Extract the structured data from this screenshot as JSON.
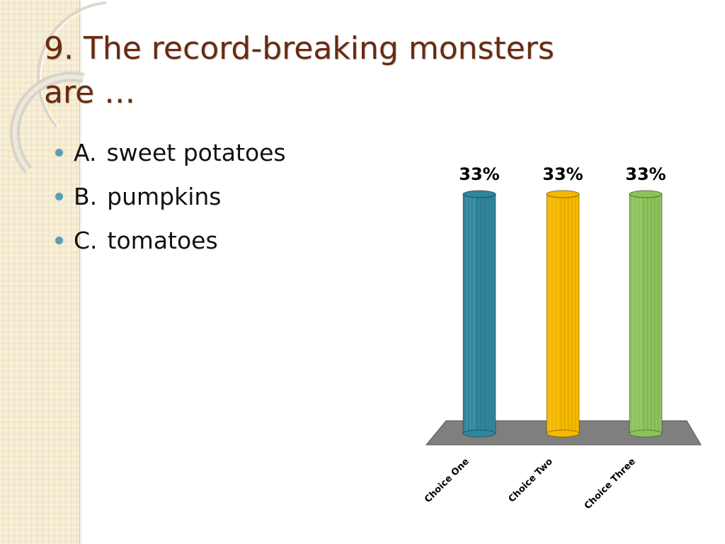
{
  "slide": {
    "title_number": "9.",
    "title_text": "The record-breaking monsters are …"
  },
  "bullets": [
    {
      "letter": "A.",
      "text": "sweet potatoes"
    },
    {
      "letter": "B.",
      "text": "pumpkins"
    },
    {
      "letter": "C.",
      "text": "tomatoes"
    }
  ],
  "theme": {
    "title_color": "#6a2a10",
    "bullet_color": "#5a9eb4",
    "floor_color": "#7f7f7f"
  },
  "chart_data": {
    "type": "bar",
    "style": "3d-cylinder",
    "categories": [
      "Choice One",
      "Choice Two",
      "Choice Three"
    ],
    "values": [
      33,
      33,
      33
    ],
    "value_labels": [
      "33%",
      "33%",
      "33%"
    ],
    "colors": [
      "#31859c",
      "#f5b800",
      "#8dc25a"
    ],
    "ylim": [
      0,
      33
    ],
    "grid": false,
    "legend": "none"
  }
}
